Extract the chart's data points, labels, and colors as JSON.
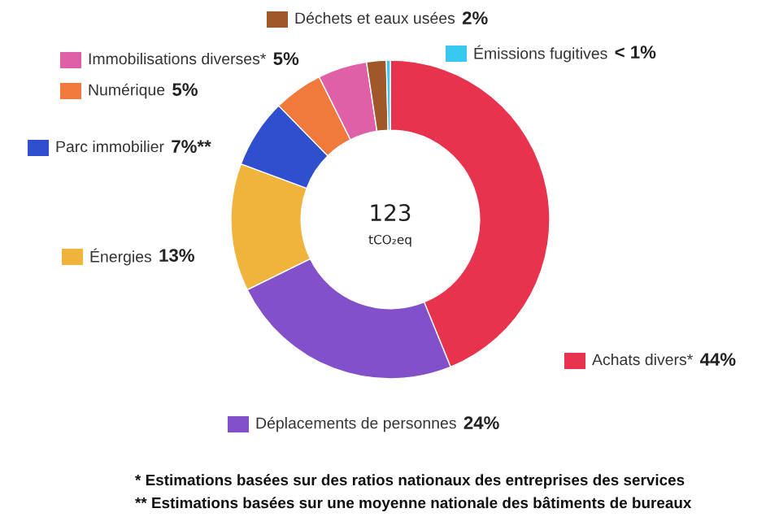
{
  "chart_data": {
    "type": "donut",
    "categories": [
      "Achats divers*",
      "Déplacements de personnes",
      "Énergies",
      "Parc immobilier",
      "Numérique",
      "Immobilisations diverses*",
      "Déchets et eaux usées",
      "Émissions fugitives"
    ],
    "values": [
      44,
      24,
      13,
      7,
      5,
      5,
      2,
      0.4
    ],
    "value_labels": [
      "44%",
      "24%",
      "13%",
      "7%**",
      "5%",
      "5%",
      "2%",
      "< 1%"
    ],
    "colors": [
      "#e8334f",
      "#8250c8",
      "#f0b43c",
      "#2f4fcf",
      "#f07a3c",
      "#e060a8",
      "#a0582a",
      "#38c8f0"
    ],
    "legend": "left",
    "annotations": [
      "123",
      "tCO₂eq",
      "* Estimations basées sur des ratios nationaux des entreprises des services",
      "** Estimations basées sur une moyenne nationale des bâtiments de bureaux"
    ]
  }
}
